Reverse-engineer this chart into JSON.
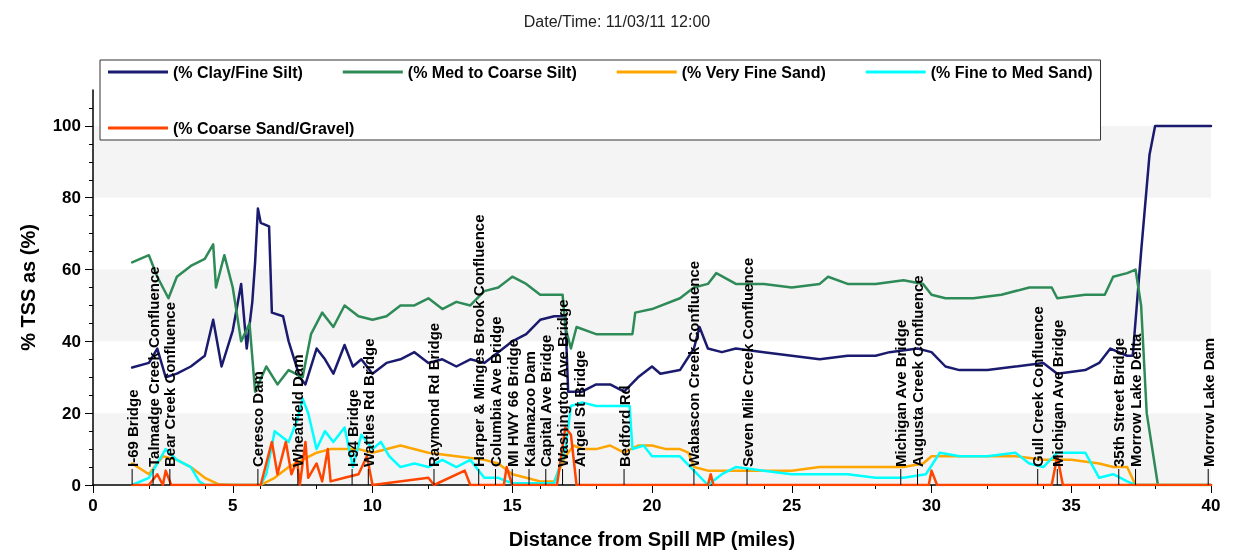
{
  "chart_data": {
    "type": "line",
    "title": "Date/Time: 11/03/11 12:00",
    "xlabel": "Distance from Spill MP (miles)",
    "ylabel": "% TSS as (%)",
    "xlim": [
      0,
      40
    ],
    "xticks": [
      0,
      5,
      10,
      15,
      20,
      25,
      30,
      35,
      40
    ],
    "ylim": [
      0,
      110
    ],
    "yticks": [
      0,
      20,
      40,
      60,
      80,
      100
    ],
    "grid": false,
    "legend": "top",
    "marker": "none",
    "line_style": "solid",
    "bands": [
      {
        "axis": "y",
        "from": 0,
        "to": 20,
        "color": "#f4f4f4"
      },
      {
        "axis": "y",
        "from": 40,
        "to": 60,
        "color": "#f4f4f4"
      },
      {
        "axis": "y",
        "from": 80,
        "to": 100,
        "color": "#f4f4f4"
      }
    ],
    "annotations": [
      {
        "text": "I-69 Bridge",
        "x": 1.4,
        "y": 0
      },
      {
        "text": "Talmadge Creek Confluence",
        "x": 2.15,
        "y": 0
      },
      {
        "text": "Bear Creek Confluence",
        "x": 2.75,
        "y": 0
      },
      {
        "text": "Ceresco Dam",
        "x": 5.9,
        "y": 0
      },
      {
        "text": "Wheatfield Dam",
        "x": 7.33,
        "y": 0
      },
      {
        "text": "I-94 Bridge",
        "x": 9.27,
        "y": 0
      },
      {
        "text": "Wattles Rd Bridge",
        "x": 9.85,
        "y": 0
      },
      {
        "text": "Raymond Rd Bridge",
        "x": 12.2,
        "y": 0
      },
      {
        "text": "Harper & Minges Brook Confluence",
        "x": 13.8,
        "y": 0
      },
      {
        "text": "Columbia Ave Bridge",
        "x": 14.4,
        "y": 0
      },
      {
        "text": "MI HWY 66 Bridge",
        "x": 15.0,
        "y": 0
      },
      {
        "text": "Kalamazoo Dam",
        "x": 15.6,
        "y": 0
      },
      {
        "text": "Capital Ave Bridge",
        "x": 16.2,
        "y": 0
      },
      {
        "text": "Washington Ave Bridge",
        "x": 16.8,
        "y": 0
      },
      {
        "text": "Angell St Bridge",
        "x": 17.4,
        "y": 0
      },
      {
        "text": "Bedford Rd",
        "x": 19.0,
        "y": 0
      },
      {
        "text": "Wabascon Creek Confluence",
        "x": 21.5,
        "y": 0
      },
      {
        "text": "Seven Mile Creek Confluence",
        "x": 23.4,
        "y": 0
      },
      {
        "text": "Michigan Ave Bridge",
        "x": 28.9,
        "y": 0
      },
      {
        "text": "Augusta Creek Confluence",
        "x": 29.5,
        "y": 0
      },
      {
        "text": "Gull Creek Confluence",
        "x": 33.8,
        "y": 0
      },
      {
        "text": "Michigan Ave Bridge",
        "x": 34.5,
        "y": 0
      },
      {
        "text": "35th Street Bridge",
        "x": 36.7,
        "y": 0
      },
      {
        "text": "Morrow Lake Delta",
        "x": 37.3,
        "y": 0
      },
      {
        "text": "Morrow Lake Dam",
        "x": 39.9,
        "y": 0
      }
    ],
    "series": [
      {
        "name": "(% Clay/Fine Silt)",
        "color": "#1a1a6e",
        "x": [
          1.4,
          2.0,
          2.3,
          2.6,
          3.0,
          3.5,
          4.0,
          4.3,
          4.6,
          5.0,
          5.3,
          5.5,
          5.7,
          5.8,
          5.9,
          6.0,
          6.3,
          6.4,
          6.8,
          7.0,
          7.4,
          7.6,
          8.0,
          8.3,
          8.6,
          9.0,
          9.3,
          9.6,
          10.0,
          10.5,
          11.0,
          11.5,
          12.0,
          12.5,
          13.0,
          13.5,
          14.0,
          14.5,
          15.0,
          15.5,
          16.0,
          16.5,
          16.9,
          17.0,
          17.5,
          18.0,
          18.5,
          19.0,
          19.5,
          20.0,
          20.3,
          21.0,
          21.5,
          21.7,
          22.0,
          22.5,
          23.0,
          24.0,
          25.0,
          26.0,
          27.0,
          28.0,
          28.5,
          29.5,
          30.0,
          30.5,
          31.0,
          32.0,
          33.0,
          34.0,
          34.5,
          35.5,
          36.0,
          36.4,
          37.0,
          37.2,
          37.5,
          37.8,
          38.0,
          40.0
        ],
        "values": [
          32.7,
          34,
          38,
          30,
          31,
          33,
          36,
          46,
          33,
          43,
          56,
          38,
          51,
          62,
          77,
          73,
          72,
          48,
          47,
          40,
          30,
          28,
          38,
          35,
          31,
          39,
          33,
          35,
          31,
          34,
          35,
          37,
          34,
          35,
          33,
          35,
          34,
          37,
          40,
          42,
          46,
          47,
          47,
          26,
          26,
          28,
          28,
          26,
          30,
          33,
          31,
          32,
          38,
          44,
          38,
          37,
          38,
          37,
          36,
          35,
          36,
          36,
          37,
          38,
          37,
          33,
          32,
          32,
          33,
          34,
          31,
          32,
          34,
          38,
          36,
          36,
          65,
          92,
          100,
          100
        ]
      },
      {
        "name": "(% Med to Coarse Silt)",
        "color": "#2e8b57",
        "x": [
          1.4,
          2.0,
          2.3,
          2.7,
          3.0,
          3.5,
          4.0,
          4.3,
          4.4,
          4.7,
          5.0,
          5.3,
          5.6,
          5.8,
          6.2,
          6.6,
          7.0,
          7.5,
          7.8,
          8.2,
          8.6,
          9.0,
          9.5,
          10.0,
          10.5,
          11.0,
          11.5,
          12.0,
          12.5,
          13.0,
          13.5,
          14.0,
          14.5,
          15.0,
          15.5,
          16.0,
          16.5,
          16.8,
          16.9,
          17.1,
          17.3,
          18.0,
          19.0,
          19.3,
          19.4,
          20.0,
          21.0,
          21.5,
          22.0,
          22.3,
          23.0,
          24.0,
          25.0,
          26.0,
          26.3,
          27.0,
          28.0,
          29.0,
          29.7,
          30.0,
          30.5,
          31.5,
          32.5,
          33.5,
          34.3,
          34.5,
          35.5,
          36.2,
          36.5,
          37.0,
          37.3,
          37.5,
          37.7,
          38.0,
          38.1
        ],
        "values": [
          62,
          64,
          58,
          52,
          58,
          61,
          63,
          67,
          55,
          64,
          55,
          40,
          45,
          26,
          33,
          28,
          32,
          30,
          42,
          48,
          44,
          50,
          47,
          46,
          47,
          50,
          50,
          52,
          49,
          51,
          50,
          54,
          55,
          58,
          56,
          53,
          53,
          53,
          44,
          38,
          44,
          42,
          42,
          42,
          48,
          49,
          52,
          55,
          56,
          59,
          56,
          56,
          55,
          56,
          58,
          56,
          56,
          57,
          56,
          53,
          52,
          52,
          53,
          55,
          55,
          52,
          53,
          53,
          58,
          59,
          60,
          50,
          20,
          5,
          0
        ]
      },
      {
        "name": "(% Very Fine Sand)",
        "color": "#ffa500",
        "x": [
          1.4,
          2.0,
          2.5,
          3.0,
          3.5,
          4.0,
          4.5,
          5.0,
          6.0,
          6.5,
          7.0,
          7.5,
          8.0,
          8.5,
          9.0,
          9.5,
          10.0,
          11.0,
          12.0,
          13.0,
          14.0,
          14.5,
          15.0,
          15.5,
          16.0,
          16.5,
          16.9,
          17.2,
          17.5,
          18.0,
          18.5,
          19.0,
          19.5,
          20.0,
          20.5,
          21.0,
          21.3,
          21.5,
          22.0,
          23.0,
          24.0,
          25.0,
          26.0,
          27.0,
          28.0,
          29.0,
          29.7,
          30.0,
          31.0,
          32.0,
          33.0,
          34.0,
          35.0,
          36.0,
          36.5,
          37.0,
          37.3,
          40.0
        ],
        "values": [
          6,
          3,
          8,
          7,
          5,
          2,
          0.2,
          0,
          0,
          2,
          5,
          7,
          9,
          10,
          10,
          10,
          9,
          11,
          9,
          8,
          7,
          6,
          3,
          2,
          1,
          1,
          8,
          11,
          10,
          10,
          11,
          9,
          11,
          11,
          10,
          10,
          9,
          5,
          4,
          4,
          4,
          4,
          5,
          5,
          5,
          5,
          6,
          8,
          8,
          8,
          8,
          7,
          7,
          6,
          5,
          5,
          0,
          0
        ]
      },
      {
        "name": "(% Fine to Med Sand)",
        "color": "#00ffff",
        "x": [
          1.4,
          2.0,
          2.3,
          2.6,
          3.0,
          3.5,
          3.8,
          4.0,
          6.0,
          6.2,
          6.5,
          7.0,
          7.3,
          7.5,
          7.7,
          8.0,
          8.3,
          8.6,
          9.0,
          9.3,
          9.6,
          10.0,
          10.3,
          10.6,
          11.0,
          11.5,
          12.0,
          12.5,
          13.0,
          13.5,
          14.0,
          14.5,
          15.0,
          16.5,
          16.9,
          17.1,
          17.5,
          18.0,
          19.0,
          19.2,
          19.3,
          19.7,
          20.0,
          21.0,
          21.5,
          22.0,
          22.5,
          23.0,
          24.0,
          25.0,
          26.0,
          27.0,
          28.0,
          29.0,
          29.8,
          30.3,
          31.0,
          32.0,
          33.0,
          33.5,
          34.0,
          34.5,
          35.5,
          36.0,
          36.5,
          37.0,
          37.3,
          40.0
        ],
        "values": [
          0,
          2,
          6,
          10,
          7,
          5,
          1,
          0,
          0,
          3,
          15,
          12,
          18,
          24,
          20,
          10,
          15,
          12,
          16,
          5,
          14,
          10,
          12,
          8,
          5,
          6,
          5,
          7,
          5,
          7,
          2,
          2,
          0.5,
          0.5,
          10,
          22,
          23,
          22,
          22,
          22,
          10,
          11,
          8,
          8,
          4,
          0,
          3,
          5,
          4,
          3,
          3,
          3,
          2,
          2,
          3,
          9,
          8,
          8,
          9,
          6,
          5,
          9,
          9,
          2,
          3,
          1,
          0,
          0
        ]
      },
      {
        "name": "(% Coarse Sand/Gravel)",
        "color": "#ff4500",
        "x": [
          1.4,
          2.0,
          2.3,
          2.5,
          2.6,
          2.8,
          6.0,
          6.4,
          6.6,
          6.9,
          7.1,
          7.3,
          7.4,
          7.6,
          7.7,
          8.0,
          8.2,
          8.4,
          8.5,
          9.0,
          9.5,
          9.8,
          10.0,
          12.0,
          12.2,
          13.3,
          13.5,
          14.7,
          14.8,
          15.0,
          16.6,
          16.9,
          17.1,
          17.3,
          22.0,
          22.1,
          22.2,
          29.9,
          30.0,
          30.2,
          34.3,
          34.5,
          34.7,
          40.0
        ],
        "values": [
          0,
          0,
          3,
          0,
          4,
          0,
          0,
          12,
          3,
          12,
          3,
          7,
          0,
          12,
          2,
          6,
          1,
          10,
          1,
          2,
          3,
          8,
          0,
          2,
          0,
          4,
          0,
          0,
          5,
          0,
          0,
          16,
          14,
          0,
          0,
          3,
          0,
          0,
          4,
          0,
          0,
          8,
          0,
          0
        ]
      }
    ]
  }
}
